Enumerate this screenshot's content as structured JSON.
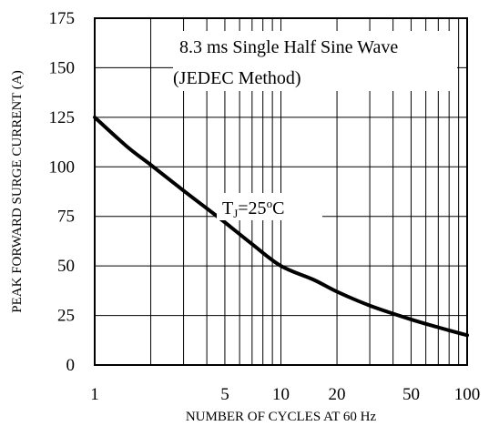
{
  "chart_data": {
    "type": "line",
    "title": "",
    "xlabel": "NUMBER OF CYCLES AT 60 Hz",
    "ylabel": "PEAK FORWARD SURGE CURRENT (A)",
    "x_scale": "log",
    "xlim": [
      1,
      100
    ],
    "ylim": [
      0,
      175
    ],
    "x_ticks": [
      1,
      5,
      10,
      20,
      50,
      100
    ],
    "y_ticks": [
      0,
      25,
      50,
      75,
      100,
      125,
      150,
      175
    ],
    "grid": true,
    "annotations": {
      "line1": "8.3 ms Single Half Sine Wave",
      "line2": "(JEDEC Method)",
      "temp": {
        "prefix": "T",
        "sub": "J",
        "mid": "=25",
        "sup": "o",
        "suffix": "C"
      }
    },
    "series": [
      {
        "x": [
          1,
          1.5,
          2,
          3,
          4,
          5,
          7,
          10,
          15,
          20,
          30,
          50,
          70,
          100
        ],
        "y": [
          125,
          110,
          101,
          88,
          79,
          72,
          61,
          50,
          43,
          37,
          30,
          23,
          19,
          15
        ]
      }
    ]
  }
}
